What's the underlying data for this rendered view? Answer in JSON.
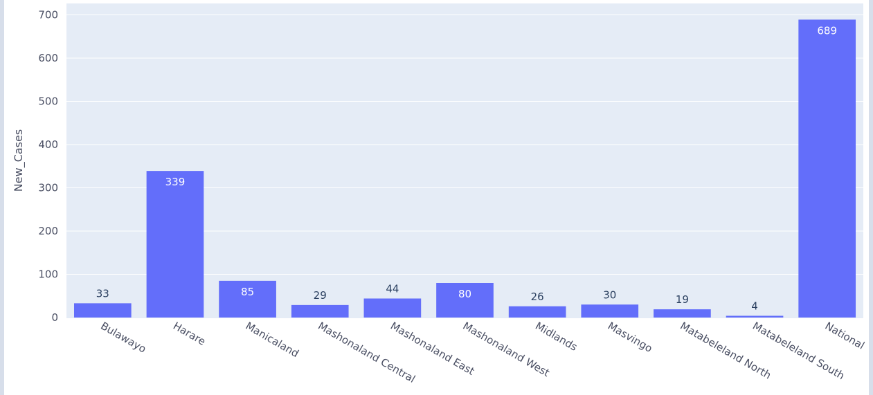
{
  "chart_data": {
    "type": "bar",
    "categories": [
      "Bulawayo",
      "Harare",
      "Manicaland",
      "Mashonaland Central",
      "Mashonaland East",
      "Mashonaland West",
      "Midlands",
      "Masvingo",
      "Matabeleland North",
      "Matabeleland South",
      "National"
    ],
    "values": [
      33,
      339,
      85,
      29,
      44,
      80,
      26,
      30,
      19,
      4,
      689
    ],
    "xlabel": "",
    "ylabel": "New_Cases",
    "ylim": [
      0,
      720
    ],
    "yticks": [
      0,
      100,
      200,
      300,
      400,
      500,
      600,
      700
    ],
    "grid": true,
    "colors": {
      "bar": "#636efa",
      "plot_bg": "#e5ecf6",
      "grid": "#ffffff",
      "label_inside": "#ffffff",
      "label_outside": "#2a3f5f"
    }
  }
}
